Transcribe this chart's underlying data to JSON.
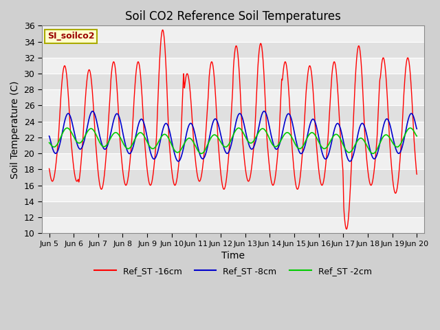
{
  "title": "Soil CO2 Reference Soil Temperatures",
  "xlabel": "Time",
  "ylabel": "Soil Temperature (C)",
  "ylim": [
    10,
    36
  ],
  "yticks": [
    10,
    12,
    14,
    16,
    18,
    20,
    22,
    24,
    26,
    28,
    30,
    32,
    34,
    36
  ],
  "xlim": [
    4.7,
    20.3
  ],
  "xtick_labels": [
    "Jun 5",
    "Jun 6",
    "Jun 7",
    "Jun 8",
    "Jun 9",
    "Jun 10",
    "Jun 11",
    "Jun 12",
    "Jun 13",
    "Jun 14",
    "Jun 15",
    "Jun 16",
    "Jun 17",
    "Jun 18",
    "Jun 19",
    "Jun 20"
  ],
  "xtick_positions": [
    5,
    6,
    7,
    8,
    9,
    10,
    11,
    12,
    13,
    14,
    15,
    16,
    17,
    18,
    19,
    20
  ],
  "legend_label": "SI_soilco2",
  "legend_bg": "#ffffcc",
  "legend_border": "#aaaa00",
  "series_labels": [
    "Ref_ST -16cm",
    "Ref_ST -8cm",
    "Ref_ST -2cm"
  ],
  "series_colors": [
    "#ff0000",
    "#0000cc",
    "#00cc00"
  ],
  "title_fontsize": 12,
  "axis_fontsize": 10,
  "tick_fontsize": 8,
  "fig_bg": "#d0d0d0",
  "plot_bg": "#e8e8e8",
  "band_light": "#f0f0f0",
  "band_dark": "#e0e0e0",
  "grid_color": "#ffffff"
}
